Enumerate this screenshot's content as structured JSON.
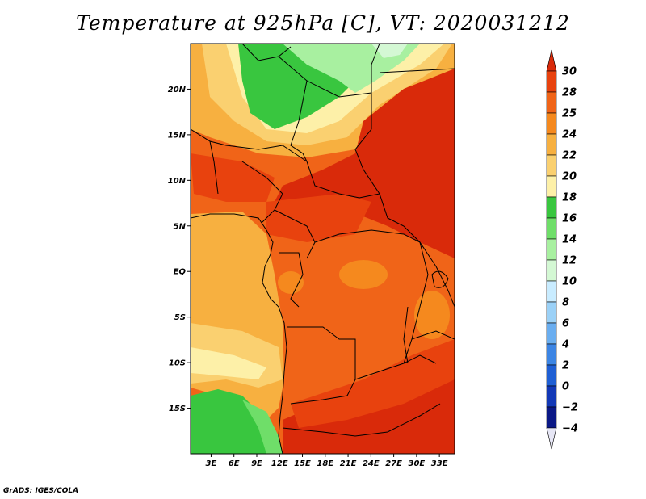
{
  "title": "Temperature at 925hPa [C], VT: 2020031212",
  "credit": "GrADS: IGES/COLA",
  "map": {
    "lat_labels": [
      {
        "text": "20N",
        "lat": 20
      },
      {
        "text": "15N",
        "lat": 15
      },
      {
        "text": "10N",
        "lat": 10
      },
      {
        "text": "5N",
        "lat": 5
      },
      {
        "text": "EQ",
        "lat": 0
      },
      {
        "text": "5S",
        "lat": -5
      },
      {
        "text": "10S",
        "lat": -10
      },
      {
        "text": "15S",
        "lat": -15
      }
    ],
    "lon_labels": [
      {
        "text": "3E",
        "lon": 3
      },
      {
        "text": "6E",
        "lon": 6
      },
      {
        "text": "9E",
        "lon": 9
      },
      {
        "text": "12E",
        "lon": 12
      },
      {
        "text": "15E",
        "lon": 15
      },
      {
        "text": "18E",
        "lon": 18
      },
      {
        "text": "21E",
        "lon": 21
      },
      {
        "text": "24E",
        "lon": 24
      },
      {
        "text": "27E",
        "lon": 27
      },
      {
        "text": "30E",
        "lon": 30
      },
      {
        "text": "33E",
        "lon": 33
      }
    ],
    "lon_range": [
      0.3,
      35
    ],
    "lat_range": [
      -20,
      25
    ]
  },
  "colorbar": {
    "labels": [
      "30",
      "28",
      "25",
      "24",
      "22",
      "20",
      "18",
      "16",
      "14",
      "12",
      "10",
      "8",
      "6",
      "4",
      "2",
      "0",
      "−2",
      "−4"
    ],
    "colors": [
      "#d92a0a",
      "#e8420e",
      "#f06418",
      "#f5891e",
      "#f7b040",
      "#fad070",
      "#fdf0a8",
      "#39c63f",
      "#6fde69",
      "#a8f0a0",
      "#d4f8d4",
      "#c9ecff",
      "#9bd1f7",
      "#6aaef0",
      "#3c85e4",
      "#1f5fd4",
      "#1238b6",
      "#0a1886",
      "#e6e6f5"
    ]
  },
  "colors": {
    "hot": "#d92a0a",
    "warm": "#f06418",
    "orange": "#f5891e",
    "tan": "#f7b040",
    "yellow": "#fdf0a8",
    "green": "#39c63f",
    "lightgreen": "#a8f0a0"
  }
}
